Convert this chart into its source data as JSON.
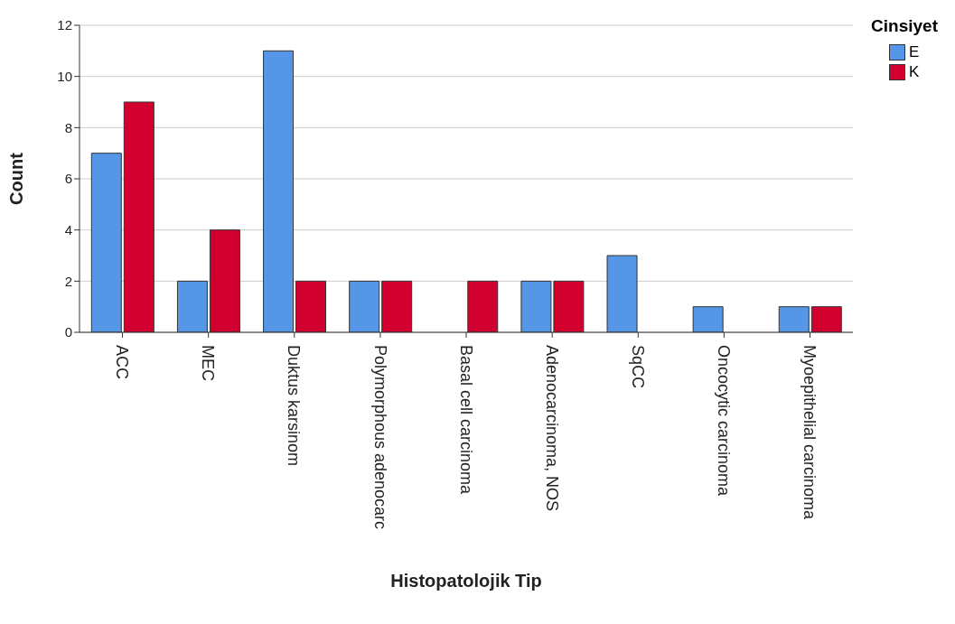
{
  "chart_data": {
    "type": "bar",
    "xlabel": "Histopatolojik Tip",
    "ylabel": "Count",
    "legend_title": "Cinsiyet",
    "categories": [
      "ACC",
      "MEC",
      "Duktus karsinom",
      "Polymorphous adenocarc",
      "Basal cell carcinoma",
      "Adenocarcinoma, NOS",
      "SqCC",
      "Oncocytic carcinoma",
      "Myoepithelial carcinoma"
    ],
    "series": [
      {
        "name": "E",
        "color": "#5596e6",
        "values": [
          7,
          2,
          11,
          2,
          0,
          2,
          3,
          1,
          1
        ]
      },
      {
        "name": "K",
        "color": "#d1002f",
        "values": [
          9,
          4,
          2,
          2,
          2,
          2,
          0,
          0,
          1
        ]
      }
    ],
    "ylim": [
      0,
      12
    ],
    "yticks": [
      0,
      2,
      4,
      6,
      8,
      10,
      12
    ],
    "grid": "y",
    "legend": "top right"
  }
}
